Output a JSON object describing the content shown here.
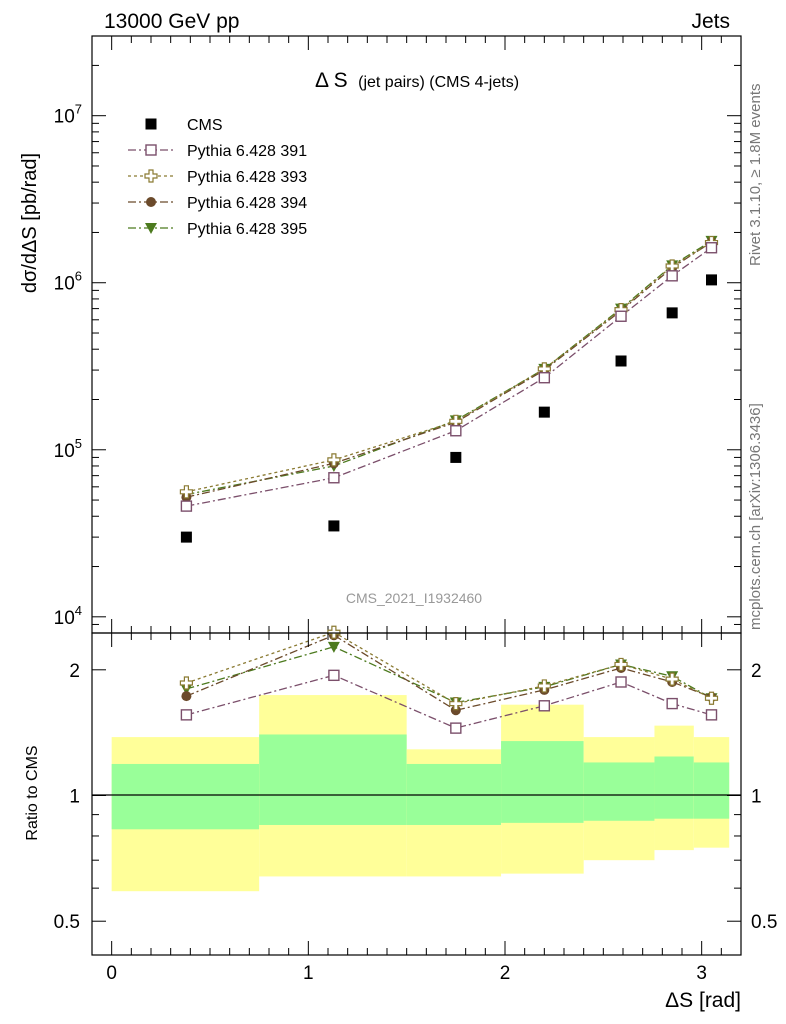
{
  "header": {
    "left": "13000 GeV pp",
    "right": "Jets"
  },
  "side_labels": {
    "rivet": "Rivet 3.1.10, ≥ 1.8M events",
    "mcplots": "mcplots.cern.ch [arXiv:1306.3436]"
  },
  "chart_data": [
    {
      "type": "scatter",
      "panel": "main",
      "title_main": "Δ S",
      "title_sub": "(jet pairs) (CMS 4-jets)",
      "watermark": "CMS_2021_I1932460",
      "ylabel": "dσ/dΔS [pb/rad]",
      "yscale": "log",
      "ylim": [
        8000,
        30000000
      ],
      "xlim": [
        -0.1,
        3.2
      ],
      "ytick_labels": [
        {
          "value": 10000,
          "base": "10",
          "exp": "4"
        },
        {
          "value": 100000,
          "base": "10",
          "exp": "5"
        },
        {
          "value": 1000000,
          "base": "10",
          "exp": "6"
        },
        {
          "value": 10000000,
          "base": "10",
          "exp": "7"
        }
      ],
      "x": [
        0.38,
        1.13,
        1.75,
        2.2,
        2.59,
        2.85,
        3.05
      ],
      "series": [
        {
          "name": "CMS",
          "color": "#000000",
          "marker": "filled-square",
          "line": "none",
          "values": [
            30000,
            35000,
            90000,
            168000,
            340000,
            660000,
            1040000
          ]
        },
        {
          "name": "Pythia 6.428 391",
          "color": "#7b4f6b",
          "marker": "open-square",
          "line": "dash-dot",
          "values": [
            46000,
            68000,
            130000,
            270000,
            630000,
            1100000,
            1620000
          ]
        },
        {
          "name": "Pythia 6.428 393",
          "color": "#8a7a32",
          "marker": "open-cross",
          "line": "dotted",
          "values": [
            56000,
            87000,
            148000,
            305000,
            690000,
            1260000,
            1740000
          ]
        },
        {
          "name": "Pythia 6.428 394",
          "color": "#6b4a2b",
          "marker": "filled-circle",
          "line": "dash-dot",
          "values": [
            52000,
            83000,
            146000,
            300000,
            680000,
            1230000,
            1750000
          ]
        },
        {
          "name": "Pythia 6.428 395",
          "color": "#4c7a1e",
          "marker": "filled-triangle-down",
          "line": "dash-dot",
          "values": [
            54000,
            80000,
            150000,
            305000,
            700000,
            1270000,
            1780000
          ]
        }
      ],
      "legend_placement": "top-left"
    },
    {
      "type": "scatter",
      "panel": "ratio",
      "ylabel": "Ratio to CMS",
      "yscale": "log",
      "ylim": [
        0.415,
        2.45
      ],
      "xlim": [
        -0.1,
        3.2
      ],
      "xlabel": "ΔS [rad]",
      "ytick_labels": [
        {
          "value": 0.5,
          "label": "0.5"
        },
        {
          "value": 1,
          "label": "1"
        },
        {
          "value": 2,
          "label": "2"
        }
      ],
      "xtick_labels": [
        {
          "value": 0,
          "label": "0"
        },
        {
          "value": 1,
          "label": "1"
        },
        {
          "value": 2,
          "label": "2"
        },
        {
          "value": 3,
          "label": "3"
        }
      ],
      "uncertainty_bands": [
        {
          "x0": 0.0,
          "x1": 0.75,
          "yellow": [
            0.59,
            1.38
          ],
          "green": [
            0.83,
            1.19
          ]
        },
        {
          "x0": 0.75,
          "x1": 1.5,
          "yellow": [
            0.64,
            1.74
          ],
          "green": [
            0.85,
            1.4
          ]
        },
        {
          "x0": 1.5,
          "x1": 1.98,
          "yellow": [
            0.64,
            1.29
          ],
          "green": [
            0.85,
            1.19
          ]
        },
        {
          "x0": 1.98,
          "x1": 2.4,
          "yellow": [
            0.65,
            1.65
          ],
          "green": [
            0.86,
            1.35
          ]
        },
        {
          "x0": 2.4,
          "x1": 2.76,
          "yellow": [
            0.7,
            1.38
          ],
          "green": [
            0.87,
            1.2
          ]
        },
        {
          "x0": 2.76,
          "x1": 2.96,
          "yellow": [
            0.74,
            1.47
          ],
          "green": [
            0.88,
            1.24
          ]
        },
        {
          "x0": 2.96,
          "x1": 3.14,
          "yellow": [
            0.75,
            1.38
          ],
          "green": [
            0.88,
            1.2
          ]
        }
      ],
      "x": [
        0.38,
        1.13,
        1.75,
        2.2,
        2.59,
        2.85,
        3.05
      ],
      "series": [
        {
          "name": "Pythia 6.428 391",
          "color": "#7b4f6b",
          "marker": "open-square",
          "line": "dash-dot",
          "values": [
            1.56,
            1.94,
            1.45,
            1.64,
            1.87,
            1.66,
            1.56
          ]
        },
        {
          "name": "Pythia 6.428 393",
          "color": "#8a7a32",
          "marker": "open-cross",
          "line": "dotted",
          "values": [
            1.86,
            2.46,
            1.66,
            1.83,
            2.06,
            1.9,
            1.71
          ]
        },
        {
          "name": "Pythia 6.428 394",
          "color": "#6b4a2b",
          "marker": "filled-circle",
          "line": "dash-dot",
          "values": [
            1.73,
            2.42,
            1.6,
            1.79,
            2.02,
            1.87,
            1.72
          ]
        },
        {
          "name": "Pythia 6.428 395",
          "color": "#4c7a1e",
          "marker": "filled-triangle-down",
          "line": "dash-dot",
          "values": [
            1.8,
            2.27,
            1.67,
            1.82,
            2.06,
            1.93,
            1.71
          ]
        }
      ],
      "reference_line": 1
    }
  ]
}
